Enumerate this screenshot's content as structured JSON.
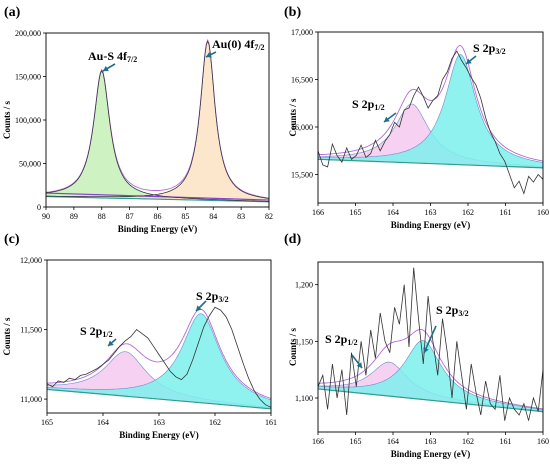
{
  "figure": {
    "panels": [
      "a",
      "b",
      "c",
      "d"
    ]
  },
  "chart_data": [
    {
      "panel_label": "(a)",
      "type": "line",
      "xlabel": "Binding Energy (eV)",
      "ylabel": "Counts / s",
      "xlim": [
        90,
        82
      ],
      "ylim": [
        0,
        200000
      ],
      "xticks": [
        "90",
        "89",
        "88",
        "87",
        "86",
        "85",
        "84",
        "83",
        "82"
      ],
      "yticks": [
        "0",
        "50,000",
        "100,000",
        "150,000",
        "200,000"
      ],
      "peaks": [
        {
          "name": "Au-S 4f",
          "sub": "7/2",
          "center": 88.0,
          "height": 146000,
          "width": 0.35,
          "fill": "#c6f0b6"
        },
        {
          "name": "Au(0) 4f",
          "sub": "7/2",
          "center": 84.2,
          "height": 183000,
          "width": 0.32,
          "fill": "#fbe3c4"
        }
      ],
      "background": {
        "start": 12000,
        "end": 6000
      },
      "arrow_color": "#1f6f8b"
    },
    {
      "panel_label": "(b)",
      "type": "line",
      "xlabel": "Binding Energy (eV)",
      "ylabel": "Counts / s",
      "xlim": [
        166,
        160
      ],
      "ylim": [
        15200,
        17000
      ],
      "xticks": [
        "166",
        "165",
        "164",
        "163",
        "162",
        "161",
        "160"
      ],
      "yticks": [
        "15,500",
        "16,000",
        "16,500",
        "17,000"
      ],
      "peaks": [
        {
          "name": "S 2p",
          "sub": "1/2",
          "center": 163.5,
          "height": 620,
          "width": 0.55,
          "fill": "#f4c9f0"
        },
        {
          "name": "S 2p",
          "sub": "3/2",
          "center": 162.2,
          "height": 1160,
          "width": 0.5,
          "fill": "#7cf0ec"
        }
      ],
      "background": {
        "start": 15660,
        "end": 15570
      },
      "raw": [
        15750,
        15600,
        15580,
        15820,
        15700,
        15630,
        15780,
        15660,
        15700,
        15810,
        15680,
        15720,
        15860,
        15750,
        15850,
        15920,
        16050,
        16000,
        16180,
        16200,
        16330,
        16420,
        16320,
        16200,
        16280,
        16330,
        16500,
        16580,
        16720,
        16800,
        16700,
        16620,
        16520,
        16440,
        16300,
        16100,
        15950,
        15850,
        15720,
        15640,
        15500,
        15360,
        15430,
        15300,
        15480,
        15420,
        15500,
        15450
      ],
      "arrow_color": "#1f6f8b"
    },
    {
      "panel_label": "(c)",
      "type": "line",
      "xlabel": "Binding Energy (eV)",
      "ylabel": "Counts / s",
      "xlim": [
        165,
        161
      ],
      "ylim": [
        10900,
        12000
      ],
      "xticks": [
        "165",
        "164",
        "163",
        "162",
        "161"
      ],
      "yticks": [
        "11,000",
        "11,500",
        "12,000"
      ],
      "peaks": [
        {
          "name": "S 2p",
          "sub": "1/2",
          "center": 163.6,
          "height": 320,
          "width": 0.45,
          "fill": "#f4c9f0"
        },
        {
          "name": "S 2p",
          "sub": "3/2",
          "center": 162.25,
          "height": 640,
          "width": 0.42,
          "fill": "#7cf0ec"
        }
      ],
      "background": {
        "start": 11070,
        "end": 10930
      },
      "raw": [
        11110,
        11090,
        11130,
        11120,
        11150,
        11140,
        11170,
        11180,
        11200,
        11220,
        11250,
        11280,
        11330,
        11380,
        11420,
        11450,
        11500,
        11470,
        11440,
        11380,
        11320,
        11260,
        11200,
        11160,
        11140,
        11180,
        11280,
        11400,
        11520,
        11600,
        11660,
        11640,
        11590,
        11500,
        11380,
        11260,
        11150,
        11060,
        11000,
        10960,
        10940
      ],
      "arrow_color": "#1f6f8b"
    },
    {
      "panel_label": "(d)",
      "type": "line",
      "xlabel": "Binding Energy (eV)",
      "ylabel": "Counts / s",
      "xlim": [
        166,
        160
      ],
      "ylim": [
        1070,
        1220
      ],
      "xticks": [
        "166",
        "165",
        "164",
        "163",
        "162",
        "161",
        "160"
      ],
      "yticks": [
        "1,100",
        "1,150",
        "1,200"
      ],
      "peaks": [
        {
          "name": "S 2p",
          "sub": "1/2",
          "center": 164.1,
          "height": 30,
          "width": 0.6,
          "fill": "#f4c9f0"
        },
        {
          "name": "S 2p",
          "sub": "3/2",
          "center": 163.2,
          "height": 52,
          "width": 0.6,
          "fill": "#7cf0ec"
        }
      ],
      "background": {
        "start": 1108,
        "end": 1088
      },
      "raw": [
        1110,
        1120,
        1090,
        1130,
        1100,
        1125,
        1085,
        1140,
        1110,
        1150,
        1120,
        1160,
        1135,
        1175,
        1150,
        1140,
        1180,
        1165,
        1200,
        1145,
        1215,
        1170,
        1130,
        1190,
        1150,
        1120,
        1170,
        1140,
        1100,
        1150,
        1120,
        1090,
        1130,
        1105,
        1085,
        1115,
        1095,
        1090,
        1120,
        1080,
        1100,
        1090,
        1085,
        1095,
        1080,
        1100,
        1088,
        1125
      ],
      "arrow_color": "#1f6f8b"
    }
  ]
}
